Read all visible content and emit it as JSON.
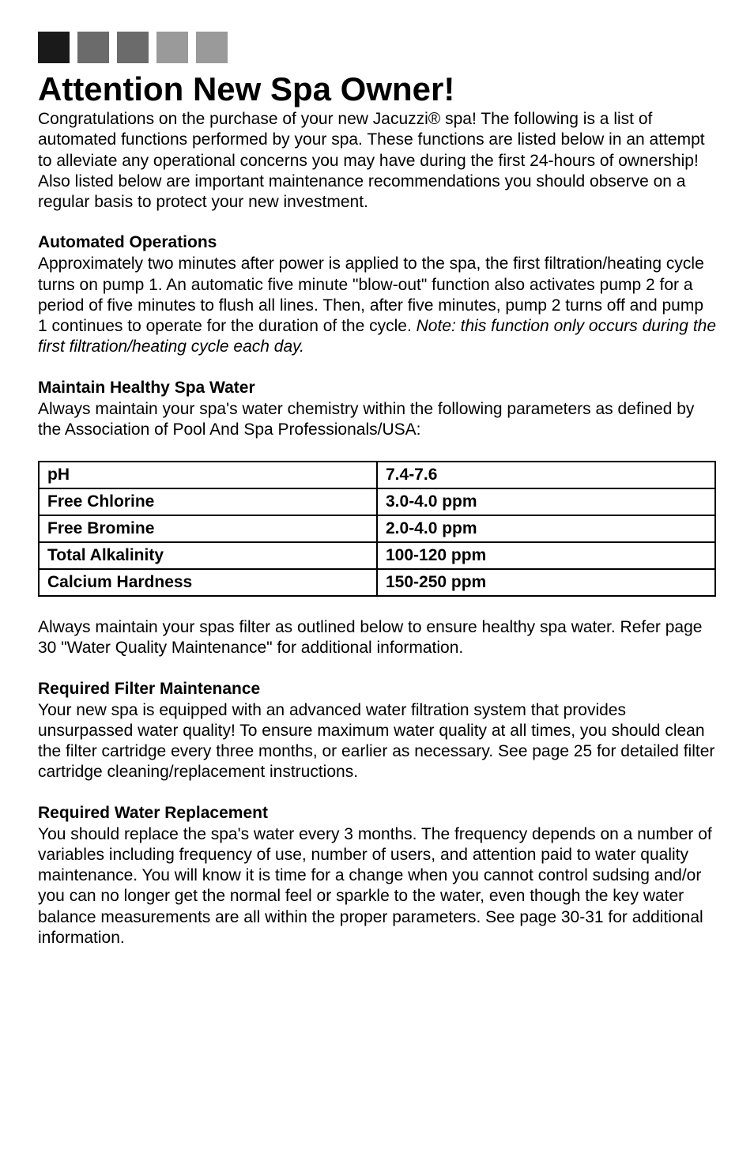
{
  "squares": {
    "colors": [
      "#1a1a1a",
      "#6b6b6b",
      "#6b6b6b",
      "#9a9a9a",
      "#9a9a9a"
    ]
  },
  "title": "Attention New Spa Owner!",
  "intro": "Congratulations on the purchase of your new Jacuzzi® spa!  The following is a list of automated functions performed by your spa.  These functions are listed below in an attempt to alleviate any operational concerns you may have during the first 24-hours of ownership!  Also listed below are important maintenance recommendations you should observe on a regular basis to protect your new investment.",
  "sections": {
    "automated": {
      "heading": "Automated Operations",
      "body_pre": "Approximately two minutes after power is applied to the spa, the first filtration/heating cycle turns on pump 1.  An automatic five minute \"blow-out\" function also activates pump 2 for a period of five minutes to flush all lines.  Then, after five minutes, pump 2 turns off and pump 1 continues to operate for the duration of the cycle. ",
      "body_italic": "Note: this function only occurs during the first filtration/heating cycle each day."
    },
    "healthy": {
      "heading": "Maintain Healthy Spa Water",
      "body": "Always maintain your spa's water chemistry within the following parameters as defined by the Association of Pool And Spa Professionals/USA:"
    },
    "table": {
      "rows": [
        {
          "label": "pH",
          "value": "7.4-7.6"
        },
        {
          "label": "Free Chlorine",
          "value": "3.0-4.0 ppm"
        },
        {
          "label": "Free Bromine",
          "value": "2.0-4.0 ppm"
        },
        {
          "label": "Total Alkalinity",
          "value": "100-120 ppm"
        },
        {
          "label": "Calcium Hardness",
          "value": "150-250 ppm"
        }
      ]
    },
    "after_table": "Always maintain your spas filter as outlined below to ensure healthy spa water. Refer page 30 \"Water Quality Maintenance\" for additional information.",
    "filter": {
      "heading": "Required Filter Maintenance",
      "body": "Your new spa is equipped with an advanced water filtration system that provides unsurpassed water quality!  To ensure maximum water quality at all times, you should clean the filter cartridge every three months, or earlier as necessary. See page 25 for detailed filter cartridge cleaning/replacement instructions."
    },
    "water": {
      "heading": "Required Water Replacement",
      "body": "You should replace the spa's water every 3 months.  The frequency depends on a number of variables including frequency of use, number of users, and attention paid to water quality maintenance.  You will know it is time for a change when you cannot control sudsing and/or you can no longer get the normal feel or sparkle to the water, even though the key water balance measurements are all within the proper parameters.  See page 30-31 for additional information."
    }
  }
}
